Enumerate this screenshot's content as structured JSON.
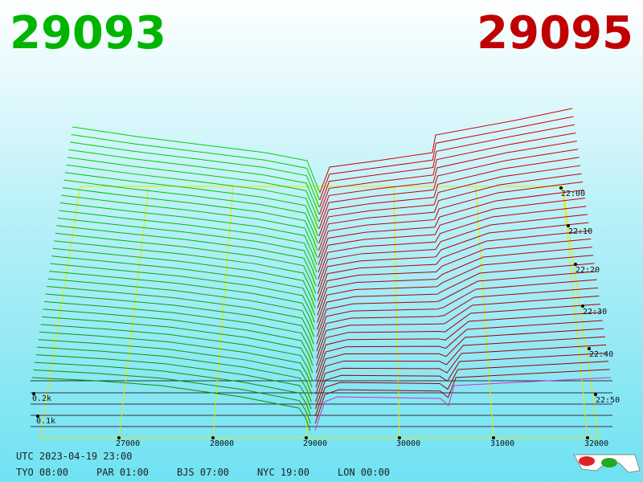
{
  "header": {
    "bid": "29093",
    "ask": "29095"
  },
  "price_axis": [
    "27000",
    "28000",
    "29000",
    "30000",
    "31000",
    "32000"
  ],
  "volume_axis": [
    "0.2k",
    "0.1k"
  ],
  "time_axis": [
    "22:00",
    "22:10",
    "22:20",
    "22:30",
    "22:40",
    "22:50"
  ],
  "footer": {
    "utc": "UTC 2023-04-19 23:00",
    "zones": [
      "TYO 08:00",
      "PAR 01:00",
      "BJS 07:00",
      "NYC 19:00",
      "LON 00:00"
    ]
  }
}
